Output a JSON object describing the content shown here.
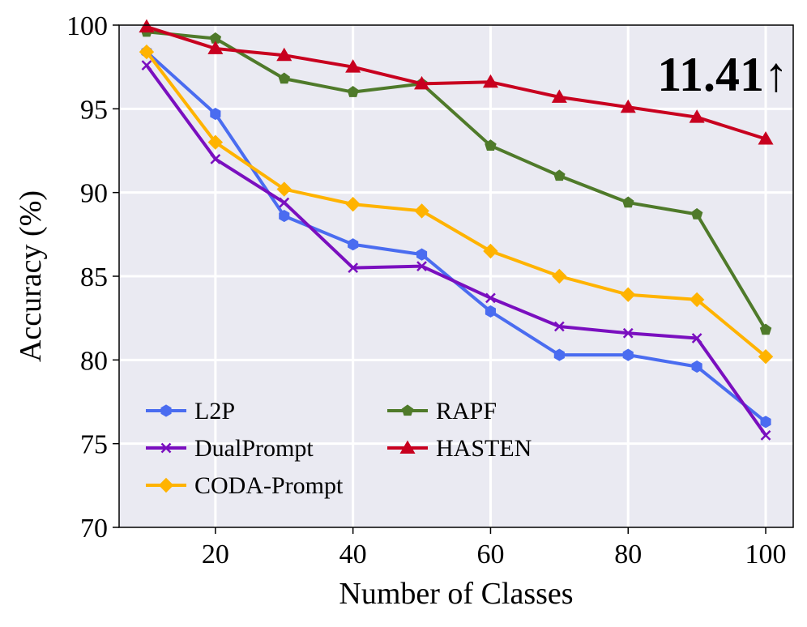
{
  "chart_data": {
    "type": "line",
    "xlabel": "Number of Classes",
    "ylabel": "Accuracy (%)",
    "xlim": [
      6,
      104
    ],
    "ylim": [
      70,
      100
    ],
    "x_ticks": [
      20,
      40,
      60,
      80,
      100
    ],
    "y_ticks": [
      70,
      75,
      80,
      85,
      90,
      95,
      100
    ],
    "grid": true,
    "background": "#eaeaf2",
    "legend_placement": "lower-left",
    "annotation": "11.41↑",
    "x": [
      10,
      20,
      30,
      40,
      50,
      60,
      70,
      80,
      90,
      100
    ],
    "series": [
      {
        "name": "L2P",
        "color": "#4a6cf0",
        "marker": "hexagon",
        "values": [
          98.4,
          94.7,
          88.6,
          86.9,
          86.3,
          82.9,
          80.3,
          80.3,
          79.6,
          76.3
        ]
      },
      {
        "name": "DualPrompt",
        "color": "#7a0fbf",
        "marker": "x",
        "values": [
          97.6,
          92.0,
          89.4,
          85.5,
          85.6,
          83.7,
          82.0,
          81.6,
          81.3,
          75.5
        ]
      },
      {
        "name": "CODA-Prompt",
        "color": "#ffb300",
        "marker": "diamond",
        "values": [
          98.4,
          93.0,
          90.2,
          89.3,
          88.9,
          86.5,
          85.0,
          83.9,
          83.6,
          80.2
        ]
      },
      {
        "name": "RAPF",
        "color": "#4f7a2a",
        "marker": "pentagon",
        "values": [
          99.6,
          99.2,
          96.8,
          96.0,
          96.5,
          92.8,
          91.0,
          89.4,
          88.7,
          81.8
        ]
      },
      {
        "name": "HASTEN",
        "color": "#c8001f",
        "marker": "triangle",
        "values": [
          99.9,
          98.6,
          98.2,
          97.5,
          96.5,
          96.6,
          95.7,
          95.1,
          94.5,
          93.2
        ]
      }
    ]
  }
}
